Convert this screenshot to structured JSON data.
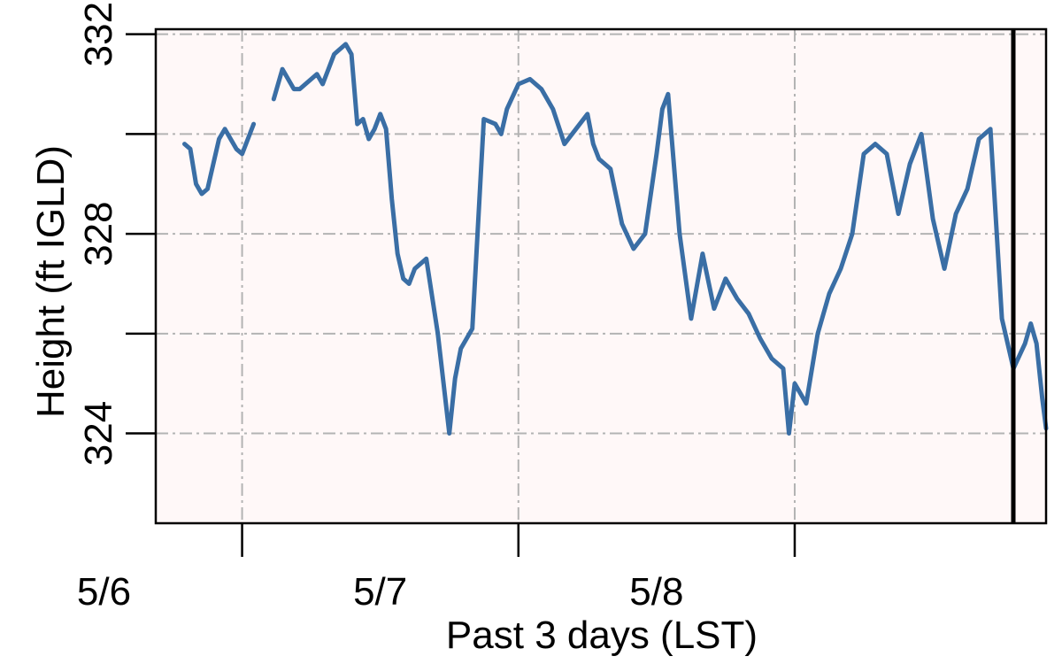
{
  "chart_data": {
    "type": "line",
    "title": "",
    "xlabel": "Past 3 days (LST)",
    "ylabel": "Height (ft IGLD)",
    "x_tick_labels": [
      "5/6",
      "5/7",
      "5/8"
    ],
    "y_tick_labels": [
      "324",
      "328",
      "332"
    ],
    "y_gridlines": [
      324,
      326,
      328,
      330,
      332
    ],
    "ylim": [
      322.2,
      332.1
    ],
    "xlim": [
      "5/5 16:30",
      "5/8 21:50"
    ],
    "grid": true,
    "plot_background": "#fff8f8",
    "series": [
      {
        "color": "#3a6ea5",
        "x": [
          "5/5 19:00",
          "5/5 19:30",
          "5/5 20:00",
          "5/5 20:30",
          "5/5 21:00",
          "5/5 21:30",
          "5/5 22:00",
          "5/5 22:30",
          "5/5 23:00",
          "5/5 23:30",
          "5/6 00:00",
          "5/6 00:30",
          "5/6 01:00",
          "5/6 01:30",
          "5/6 02:00",
          null,
          "5/6 02:45",
          "5/6 03:00",
          "5/6 03:30",
          "5/6 04:00",
          "5/6 04:30",
          "5/6 05:00",
          "5/6 05:30",
          "5/6 06:00",
          "5/6 06:30",
          "5/6 07:00",
          "5/6 07:30",
          "5/6 08:00",
          "5/6 08:30",
          "5/6 09:00",
          "5/6 09:30",
          "5/6 10:00",
          "5/6 10:30",
          "5/6 11:00",
          "5/6 11:30",
          "5/6 12:00",
          "5/6 12:30",
          "5/6 13:00",
          "5/6 13:30",
          "5/6 14:00",
          "5/6 14:30",
          "5/6 15:00",
          "5/6 16:00",
          "5/6 17:00",
          "5/6 18:00",
          "5/6 18:30",
          "5/6 19:00",
          "5/6 19:30",
          "5/6 20:00",
          "5/6 21:00",
          "5/6 22:00",
          "5/6 22:30",
          "5/6 23:00",
          "5/7 00:00",
          "5/7 01:00",
          "5/7 02:00",
          "5/7 03:00",
          "5/7 04:00",
          "5/7 05:00",
          "5/7 06:00",
          "5/7 06:30",
          "5/7 07:00",
          "5/7 08:00",
          "5/7 09:00",
          "5/7 10:00",
          "5/7 11:00",
          "5/7 12:00",
          "5/7 12:30",
          "5/7 13:00",
          "5/7 14:00",
          "5/7 15:00",
          "5/7 16:00",
          "5/7 17:00",
          "5/7 18:00",
          "5/7 19:00",
          "5/7 20:00",
          "5/7 21:00",
          "5/7 22:00",
          "5/7 23:00",
          "5/7 23:30",
          "5/8 00:00",
          "5/8 01:00",
          "5/8 02:00",
          "5/8 03:00",
          "5/8 04:00",
          "5/8 05:00",
          "5/8 06:00",
          "5/8 07:00",
          "5/8 08:00",
          "5/8 09:00",
          "5/8 10:00",
          "5/8 11:00",
          "5/8 12:00",
          "5/8 13:00",
          "5/8 14:00",
          "5/8 15:00",
          "5/8 16:00",
          "5/8 17:00",
          "5/8 18:00",
          "5/8 19:00",
          "5/8 20:00",
          "5/8 20:30",
          "5/8 21:00",
          "5/8 21:30",
          "5/8 21:50"
        ],
        "y": [
          329.8,
          329.7,
          329.0,
          328.8,
          328.9,
          329.4,
          329.9,
          330.1,
          329.9,
          329.7,
          329.6,
          329.9,
          330.2,
          null,
          null,
          null,
          330.7,
          330.9,
          331.3,
          331.1,
          330.9,
          330.9,
          331.0,
          331.1,
          331.2,
          331.0,
          331.3,
          331.6,
          331.7,
          331.8,
          331.6,
          330.2,
          330.3,
          329.9,
          330.1,
          330.4,
          330.1,
          328.7,
          327.6,
          327.1,
          327.0,
          327.3,
          327.5,
          326.0,
          324.0,
          325.1,
          325.7,
          325.9,
          326.1,
          330.3,
          330.2,
          330.0,
          330.5,
          331.0,
          331.1,
          330.9,
          330.5,
          329.8,
          330.1,
          330.4,
          329.8,
          329.5,
          329.3,
          328.2,
          327.7,
          328.0,
          329.6,
          330.5,
          330.8,
          328.0,
          326.3,
          327.6,
          326.5,
          327.1,
          326.7,
          326.4,
          325.9,
          325.5,
          325.3,
          324.0,
          325.0,
          324.6,
          326.0,
          326.8,
          327.3,
          328.0,
          329.6,
          329.8,
          329.6,
          328.4,
          329.4,
          330.0,
          328.3,
          327.3,
          328.4,
          328.9,
          329.9,
          330.1,
          326.3,
          325.3,
          325.8,
          326.2,
          325.8,
          324.7,
          324.1
        ]
      }
    ]
  }
}
